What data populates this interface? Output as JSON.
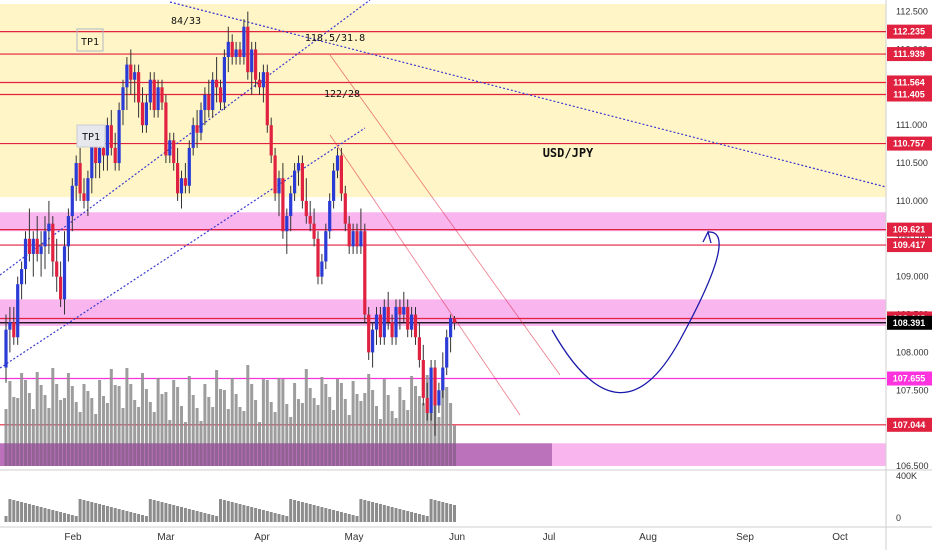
{
  "chart_data": {
    "type": "candlestick",
    "title": "USD/JPY",
    "price_axis": {
      "range": [
        106.5,
        112.6
      ],
      "ticks": [
        "112.500",
        "112.000",
        "111.500",
        "111.000",
        "110.500",
        "110.000",
        "109.500",
        "109.000",
        "108.500",
        "108.000",
        "107.500",
        "107.000",
        "106.500"
      ]
    },
    "time_axis": {
      "labels": [
        "Feb",
        "Mar",
        "Apr",
        "May",
        "Jun",
        "Jul",
        "Aug",
        "Sep",
        "Oct"
      ],
      "last_candle_index": 140
    },
    "levels": [
      {
        "label": "112.235",
        "price": 112.235,
        "line": "#e0213f",
        "tag": "#e0213f",
        "text": "#ffffff"
      },
      {
        "label": "111.939",
        "price": 111.939,
        "line": "#e0213f",
        "tag": "#e0213f",
        "text": "#ffffff"
      },
      {
        "label": "111.564",
        "price": 111.564,
        "line": "#e0213f",
        "tag": "#e0213f",
        "text": "#ffffff"
      },
      {
        "label": "111.405",
        "price": 111.405,
        "line": "#e0213f",
        "tag": "#e0213f",
        "text": "#ffffff"
      },
      {
        "label": "110.757",
        "price": 110.757,
        "line": "#e0213f",
        "tag": "#e0213f",
        "text": "#ffffff"
      },
      {
        "label": "109.621",
        "price": 109.621,
        "line": "#e0213f",
        "tag": "#e0213f",
        "text": "#ffffff"
      },
      {
        "label": "109.417",
        "price": 109.417,
        "line": "#e0213f",
        "tag": "#e0213f",
        "text": "#ffffff"
      },
      {
        "label": "108.448",
        "price": 108.448,
        "line": "#e0213f",
        "tag": "#e0213f",
        "text": "#ffffff"
      },
      {
        "label": "108.391",
        "price": 108.391,
        "line": "#000000",
        "tag": "#000000",
        "text": "#ffffff"
      },
      {
        "label": "107.655",
        "price": 107.655,
        "line": "#ff33dd",
        "tag": "#ff33dd",
        "text": "#ffffff"
      },
      {
        "label": "107.044",
        "price": 107.044,
        "line": "#e0213f",
        "tag": "#e0213f",
        "text": "#ffffff"
      }
    ],
    "zones": [
      {
        "from": 110.05,
        "to": 112.6,
        "color": "#fff5c6"
      },
      {
        "from": 109.6,
        "to": 109.85,
        "color": "#f9b5ee"
      },
      {
        "from": 108.35,
        "to": 108.7,
        "color": "#f9b5ee"
      },
      {
        "from": 106.5,
        "to": 106.8,
        "color": "#f9b5ee"
      }
    ],
    "annotations": [
      "84/33",
      "118.5/31.8",
      "122/28",
      "TP1",
      "TP1"
    ],
    "volume_axis": {
      "ticks": [
        "400K",
        "0"
      ]
    },
    "colors": {
      "up": "#2b3bd6",
      "down": "#e0213f",
      "volume": "#8c8c8c",
      "volume_recent": "#8a3a8f",
      "trendline": "#3a3ad0",
      "projection": "#1a1aaa"
    },
    "series": [
      {
        "name": "USD/JPY",
        "ohlc": [
          [
            107.8,
            108.5,
            107.6,
            108.3
          ],
          [
            108.3,
            108.6,
            108.0,
            108.4
          ],
          [
            108.4,
            108.6,
            108.1,
            108.2
          ],
          [
            108.2,
            109.0,
            108.1,
            108.9
          ],
          [
            108.9,
            109.2,
            108.7,
            109.1
          ],
          [
            109.1,
            109.6,
            108.9,
            109.5
          ],
          [
            109.5,
            109.9,
            109.2,
            109.3
          ],
          [
            109.3,
            109.6,
            109.0,
            109.5
          ],
          [
            109.5,
            109.8,
            109.2,
            109.3
          ],
          [
            109.3,
            109.6,
            109.0,
            109.4
          ],
          [
            109.4,
            109.8,
            109.1,
            109.6
          ],
          [
            109.6,
            110.0,
            109.3,
            109.7
          ],
          [
            109.7,
            109.8,
            109.0,
            109.2
          ],
          [
            109.2,
            109.5,
            108.8,
            109.0
          ],
          [
            109.0,
            109.2,
            108.6,
            108.7
          ],
          [
            108.7,
            109.6,
            108.5,
            109.4
          ],
          [
            109.4,
            109.9,
            109.2,
            109.8
          ],
          [
            109.8,
            110.3,
            109.6,
            110.2
          ],
          [
            110.2,
            110.6,
            110.0,
            110.5
          ],
          [
            110.5,
            110.7,
            110.0,
            110.1
          ],
          [
            110.1,
            110.3,
            109.9,
            110.0
          ],
          [
            110.0,
            110.4,
            109.8,
            110.3
          ],
          [
            110.3,
            110.9,
            110.1,
            110.8
          ],
          [
            110.8,
            111.0,
            110.3,
            110.5
          ],
          [
            110.5,
            110.9,
            110.3,
            110.7
          ],
          [
            110.7,
            110.9,
            110.4,
            110.6
          ],
          [
            110.6,
            111.1,
            110.4,
            111.0
          ],
          [
            111.0,
            111.2,
            110.6,
            110.7
          ],
          [
            110.7,
            110.9,
            110.4,
            110.5
          ],
          [
            110.5,
            111.3,
            110.4,
            111.2
          ],
          [
            111.2,
            111.6,
            111.0,
            111.5
          ],
          [
            111.5,
            111.9,
            111.2,
            111.8
          ],
          [
            111.8,
            112.0,
            111.4,
            111.6
          ],
          [
            111.6,
            111.8,
            111.3,
            111.7
          ],
          [
            111.7,
            111.8,
            111.1,
            111.3
          ],
          [
            111.3,
            111.5,
            110.9,
            111.0
          ],
          [
            111.0,
            111.4,
            110.9,
            111.3
          ],
          [
            111.3,
            111.7,
            111.2,
            111.6
          ],
          [
            111.6,
            111.7,
            111.1,
            111.2
          ],
          [
            111.2,
            111.6,
            111.1,
            111.5
          ],
          [
            111.5,
            111.6,
            111.2,
            111.3
          ],
          [
            111.3,
            111.4,
            110.5,
            110.6
          ],
          [
            110.6,
            110.9,
            110.5,
            110.8
          ],
          [
            110.8,
            110.9,
            110.4,
            110.5
          ],
          [
            110.5,
            110.7,
            110.0,
            110.1
          ],
          [
            110.1,
            110.4,
            109.9,
            110.3
          ],
          [
            110.3,
            110.5,
            110.1,
            110.2
          ],
          [
            110.2,
            110.8,
            110.1,
            110.7
          ],
          [
            110.7,
            111.1,
            110.6,
            111.0
          ],
          [
            111.0,
            111.2,
            110.7,
            110.9
          ],
          [
            110.9,
            111.3,
            110.8,
            111.2
          ],
          [
            111.2,
            111.5,
            111.0,
            111.4
          ],
          [
            111.4,
            111.6,
            111.1,
            111.2
          ],
          [
            111.2,
            111.7,
            111.1,
            111.6
          ],
          [
            111.6,
            111.9,
            111.3,
            111.5
          ],
          [
            111.5,
            111.6,
            111.2,
            111.3
          ],
          [
            111.3,
            112.0,
            111.2,
            111.9
          ],
          [
            111.9,
            112.3,
            111.7,
            112.1
          ],
          [
            112.1,
            112.2,
            111.8,
            111.9
          ],
          [
            111.9,
            112.1,
            111.8,
            112.0
          ],
          [
            112.0,
            112.1,
            111.8,
            111.9
          ],
          [
            111.9,
            112.4,
            111.8,
            112.3
          ],
          [
            112.3,
            112.5,
            111.6,
            111.7
          ],
          [
            111.7,
            112.1,
            111.4,
            112.0
          ],
          [
            112.0,
            112.1,
            111.5,
            111.6
          ],
          [
            111.6,
            111.7,
            111.4,
            111.5
          ],
          [
            111.5,
            111.8,
            111.3,
            111.7
          ],
          [
            111.7,
            111.8,
            110.9,
            111.0
          ],
          [
            111.0,
            111.1,
            110.5,
            110.6
          ],
          [
            110.6,
            110.7,
            110.0,
            110.1
          ],
          [
            110.1,
            110.4,
            109.8,
            110.3
          ],
          [
            110.3,
            110.5,
            109.5,
            109.6
          ],
          [
            109.6,
            109.9,
            109.3,
            109.8
          ],
          [
            109.8,
            110.2,
            109.6,
            110.1
          ],
          [
            110.1,
            110.5,
            110.0,
            110.4
          ],
          [
            110.4,
            110.6,
            110.2,
            110.5
          ],
          [
            110.5,
            110.6,
            109.9,
            110.0
          ],
          [
            110.0,
            110.3,
            109.7,
            109.8
          ],
          [
            109.8,
            110.0,
            109.6,
            109.7
          ],
          [
            109.7,
            109.9,
            109.4,
            109.5
          ],
          [
            109.5,
            109.6,
            108.9,
            109.0
          ],
          [
            109.0,
            109.3,
            108.9,
            109.2
          ],
          [
            109.2,
            109.7,
            109.1,
            109.6
          ],
          [
            109.6,
            110.1,
            109.5,
            110.0
          ],
          [
            110.0,
            110.5,
            109.9,
            110.4
          ],
          [
            110.4,
            110.7,
            110.3,
            110.6
          ],
          [
            110.6,
            110.7,
            110.0,
            110.1
          ],
          [
            110.1,
            110.2,
            109.6,
            109.7
          ],
          [
            109.7,
            109.8,
            109.3,
            109.4
          ],
          [
            109.4,
            109.7,
            109.3,
            109.6
          ],
          [
            109.6,
            109.7,
            109.3,
            109.4
          ],
          [
            109.4,
            109.9,
            109.3,
            109.6
          ],
          [
            109.6,
            109.7,
            108.4,
            108.5
          ],
          [
            108.5,
            108.6,
            107.9,
            108.0
          ],
          [
            108.0,
            108.4,
            107.8,
            108.3
          ],
          [
            108.3,
            108.6,
            108.1,
            108.5
          ],
          [
            108.5,
            108.6,
            108.1,
            108.2
          ],
          [
            108.2,
            108.7,
            108.1,
            108.6
          ],
          [
            108.6,
            108.8,
            108.3,
            108.4
          ],
          [
            108.4,
            108.5,
            108.1,
            108.2
          ],
          [
            108.2,
            108.7,
            108.1,
            108.6
          ],
          [
            108.6,
            108.7,
            108.3,
            108.5
          ],
          [
            108.5,
            108.8,
            108.4,
            108.6
          ],
          [
            108.6,
            108.7,
            108.2,
            108.3
          ],
          [
            108.3,
            108.6,
            108.2,
            108.5
          ],
          [
            108.5,
            108.6,
            108.1,
            108.2
          ],
          [
            108.2,
            108.4,
            107.8,
            107.9
          ],
          [
            107.9,
            108.1,
            107.3,
            107.4
          ],
          [
            107.4,
            107.6,
            107.1,
            107.2
          ],
          [
            107.2,
            107.9,
            107.1,
            107.8
          ],
          [
            107.8,
            107.9,
            106.9,
            107.3
          ],
          [
            107.3,
            107.6,
            107.2,
            107.5
          ],
          [
            107.5,
            108.0,
            107.4,
            107.8
          ],
          [
            107.8,
            108.3,
            107.7,
            108.2
          ],
          [
            108.2,
            108.5,
            108.0,
            108.45
          ],
          [
            108.45,
            108.48,
            108.3,
            108.39
          ]
        ]
      }
    ]
  }
}
